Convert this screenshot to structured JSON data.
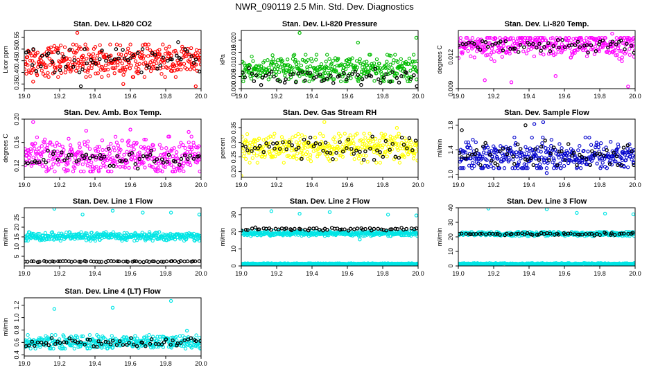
{
  "figure": {
    "title": "NWR_090119  2.5 Min. Std. Dev. Diagnostics"
  },
  "chart_data": [
    {
      "type": "scatter",
      "title": "Stan. Dev. Li-820 CO2",
      "xlabel": "",
      "ylabel": "Licor ppm",
      "xlim": [
        19.0,
        20.0
      ],
      "ylim": [
        0.33,
        0.58
      ],
      "xticks": [
        "19.0",
        "19.2",
        "19.4",
        "19.6",
        "19.8",
        "20.0"
      ],
      "yticks": [
        "0.35",
        "0.40",
        "0.45",
        "0.50",
        "0.55"
      ],
      "series": [
        {
          "color": "#ff0000",
          "band": [
            0.38,
            0.52
          ],
          "center": 0.45,
          "outliers": [
            [
              19.3,
              0.57
            ],
            [
              19.05,
              0.36
            ],
            [
              19.97,
              0.34
            ],
            [
              19.56,
              0.35
            ]
          ]
        },
        {
          "color": "#000000",
          "band": [
            0.4,
            0.5
          ],
          "center": 0.45,
          "outliers": [
            [
              19.32,
              0.34
            ],
            [
              19.87,
              0.53
            ]
          ]
        }
      ]
    },
    {
      "type": "scatter",
      "title": "Stan. Dev. Li-820 Pressure",
      "xlabel": "",
      "ylabel": "kPa",
      "xlim": [
        19.0,
        20.0
      ],
      "ylim": [
        0.0,
        0.024
      ],
      "xticks": [
        "19.0",
        "19.2",
        "19.4",
        "19.6",
        "19.8",
        "20.0"
      ],
      "yticks": [
        "0.000",
        "0.005",
        "0.010",
        "0.015",
        "0.020"
      ],
      "series": [
        {
          "color": "#00bb00",
          "band": [
            0.003,
            0.014
          ],
          "center": 0.008,
          "outliers": [
            [
              19.33,
              0.023
            ],
            [
              19.66,
              0.019
            ],
            [
              19.99,
              0.021
            ]
          ]
        },
        {
          "color": "#000000",
          "band": [
            0.001,
            0.009
          ],
          "center": 0.005,
          "outliers": []
        }
      ]
    },
    {
      "type": "scatter",
      "title": "Stan. Dev. Li-820 Temp.",
      "xlabel": "",
      "ylabel": "degrees C",
      "xlim": [
        19.0,
        20.0
      ],
      "ylim": [
        0.009,
        0.0145
      ],
      "xticks": [
        "19.0",
        "19.2",
        "19.4",
        "19.6",
        "19.8",
        "20.0"
      ],
      "yticks": [
        "0.009",
        "0.012"
      ],
      "series": [
        {
          "color": "#ff00ff",
          "band": [
            0.0115,
            0.0138
          ],
          "center": 0.0131,
          "outliers": [
            [
              19.15,
              0.0098
            ],
            [
              19.3,
              0.0096
            ],
            [
              19.55,
              0.0102
            ],
            [
              19.87,
              0.0142
            ],
            [
              19.96,
              0.0092
            ]
          ]
        },
        {
          "color": "#000000",
          "band": [
            0.0124,
            0.0136
          ],
          "center": 0.0131,
          "outliers": []
        }
      ]
    },
    {
      "type": "scatter",
      "title": "Stan. Dev. Amb. Box Temp.",
      "xlabel": "",
      "ylabel": "degrees C",
      "xlim": [
        19.0,
        20.0
      ],
      "ylim": [
        0.1,
        0.2
      ],
      "xticks": [
        "19.0",
        "19.2",
        "19.4",
        "19.6",
        "19.8",
        "20.0"
      ],
      "yticks": [
        "0.12",
        "0.16",
        "0.20"
      ],
      "series": [
        {
          "color": "#ff00ff",
          "band": [
            0.11,
            0.17
          ],
          "center": 0.135,
          "outliers": [
            [
              19.05,
              0.195
            ],
            [
              19.35,
              0.18
            ],
            [
              19.6,
              0.182
            ],
            [
              19.93,
              0.178
            ]
          ]
        },
        {
          "color": "#000000",
          "band": [
            0.115,
            0.15
          ],
          "center": 0.13,
          "outliers": []
        }
      ]
    },
    {
      "type": "scatter",
      "title": "Stan. Dev. Gas Stream RH",
      "xlabel": "",
      "ylabel": "percent",
      "xlim": [
        19.0,
        20.0
      ],
      "ylim": [
        0.18,
        0.38
      ],
      "xticks": [
        "19.0",
        "19.2",
        "19.4",
        "19.6",
        "19.8",
        "20.0"
      ],
      "yticks": [
        "0.20",
        "0.25",
        "0.30",
        "0.35"
      ],
      "series": [
        {
          "color": "#ffff00",
          "band": [
            0.23,
            0.33
          ],
          "center": 0.28,
          "outliers": [
            [
              19.0,
              0.185
            ],
            [
              19.47,
              0.37
            ],
            [
              19.88,
              0.35
            ]
          ]
        },
        {
          "color": "#000000",
          "band": [
            0.24,
            0.32
          ],
          "center": 0.28,
          "outliers": []
        }
      ]
    },
    {
      "type": "scatter",
      "title": "Stan. Dev. Sample Flow",
      "xlabel": "",
      "ylabel": "ml/min",
      "xlim": [
        19.0,
        20.0
      ],
      "ylim": [
        0.95,
        1.9
      ],
      "xticks": [
        "19.0",
        "19.2",
        "19.4",
        "19.6",
        "19.8",
        "20.0"
      ],
      "yticks": [
        "1.0",
        "1.4",
        "1.8"
      ],
      "series": [
        {
          "color": "#0000cc",
          "band": [
            1.1,
            1.6
          ],
          "center": 1.3,
          "outliers": [
            [
              19.43,
              1.82
            ],
            [
              19.48,
              1.85
            ],
            [
              19.5,
              1.02
            ]
          ]
        },
        {
          "color": "#000000",
          "band": [
            1.15,
            1.55
          ],
          "center": 1.3,
          "outliers": [
            [
              19.02,
              1.72
            ],
            [
              19.38,
              1.8
            ]
          ]
        }
      ]
    },
    {
      "type": "scatter",
      "title": "Stan. Dev. Line 1 Flow",
      "xlabel": "",
      "ylabel": "ml/min",
      "xlim": [
        19.0,
        20.0
      ],
      "ylim": [
        0.0,
        30.0
      ],
      "xticks": [
        "19.0",
        "19.2",
        "19.4",
        "19.6",
        "19.8",
        "20.0"
      ],
      "yticks": [
        "5",
        "10",
        "15",
        "20",
        "25"
      ],
      "series": [
        {
          "color": "#00e5e5",
          "band": [
            13.0,
            17.5
          ],
          "center": 15.2,
          "outliers": [
            [
              19.17,
              29.5
            ],
            [
              19.33,
              26.5
            ],
            [
              19.5,
              28.5
            ],
            [
              19.67,
              27.5
            ],
            [
              19.83,
              27.5
            ],
            [
              19.99,
              26.5
            ]
          ]
        },
        {
          "color": "#000000",
          "band": [
            2.0,
            2.6
          ],
          "center": 2.3,
          "outliers": []
        }
      ]
    },
    {
      "type": "scatter",
      "title": "Stan. Dev. Line 2 Flow",
      "xlabel": "",
      "ylabel": "ml/min",
      "xlim": [
        19.0,
        20.0
      ],
      "ylim": [
        0.0,
        34.0
      ],
      "xticks": [
        "19.0",
        "19.2",
        "19.4",
        "19.6",
        "19.8",
        "20.0"
      ],
      "yticks": [
        "0",
        "10",
        "20",
        "30"
      ],
      "series": [
        {
          "color": "#00e5e5",
          "band": [
            17.5,
            20.5
          ],
          "center": 19.0,
          "outliers": [
            [
              19.17,
              32.0
            ],
            [
              19.33,
              30.5
            ],
            [
              19.5,
              31.5
            ],
            [
              19.67,
              15.5
            ],
            [
              19.83,
              30.0
            ],
            [
              19.99,
              29.5
            ]
          ]
        },
        {
          "color": "#00e5e5",
          "band": [
            1.0,
            1.6
          ],
          "center": 1.3,
          "outliers": []
        },
        {
          "color": "#000000",
          "band": [
            20.5,
            22.5
          ],
          "center": 21.5,
          "outliers": []
        }
      ]
    },
    {
      "type": "scatter",
      "title": "Stan. Dev. Line 3 Flow",
      "xlabel": "",
      "ylabel": "ml/min",
      "xlim": [
        19.0,
        20.0
      ],
      "ylim": [
        0.0,
        40.0
      ],
      "xticks": [
        "19.0",
        "19.2",
        "19.4",
        "19.6",
        "19.8",
        "20.0"
      ],
      "yticks": [
        "0",
        "10",
        "20",
        "30",
        "40"
      ],
      "series": [
        {
          "color": "#00e5e5",
          "band": [
            20.5,
            23.5
          ],
          "center": 22.0,
          "outliers": [
            [
              19.17,
              39.5
            ],
            [
              19.5,
              39.0
            ],
            [
              19.67,
              36.5
            ],
            [
              19.83,
              36.0
            ],
            [
              19.99,
              35.5
            ]
          ]
        },
        {
          "color": "#00e5e5",
          "band": [
            1.0,
            2.0
          ],
          "center": 1.5,
          "outliers": []
        },
        {
          "color": "#000000",
          "band": [
            21.0,
            23.0
          ],
          "center": 22.0,
          "outliers": []
        }
      ]
    },
    {
      "type": "scatter",
      "title": "Stan. Dev. Line 4 (LT) Flow",
      "xlabel": "",
      "ylabel": "ml/min",
      "xlim": [
        19.0,
        20.0
      ],
      "ylim": [
        0.38,
        1.32
      ],
      "xticks": [
        "19.0",
        "19.2",
        "19.4",
        "19.6",
        "19.8",
        "20.0"
      ],
      "yticks": [
        "0.4",
        "0.6",
        "0.8",
        "1.0",
        "1.2"
      ],
      "series": [
        {
          "color": "#00e5e5",
          "band": [
            0.5,
            0.72
          ],
          "center": 0.6,
          "outliers": [
            [
              19.17,
              1.14
            ],
            [
              19.5,
              1.16
            ],
            [
              19.83,
              1.27
            ],
            [
              19.92,
              0.79
            ]
          ]
        },
        {
          "color": "#000000",
          "band": [
            0.52,
            0.67
          ],
          "center": 0.6,
          "outliers": []
        }
      ]
    }
  ]
}
